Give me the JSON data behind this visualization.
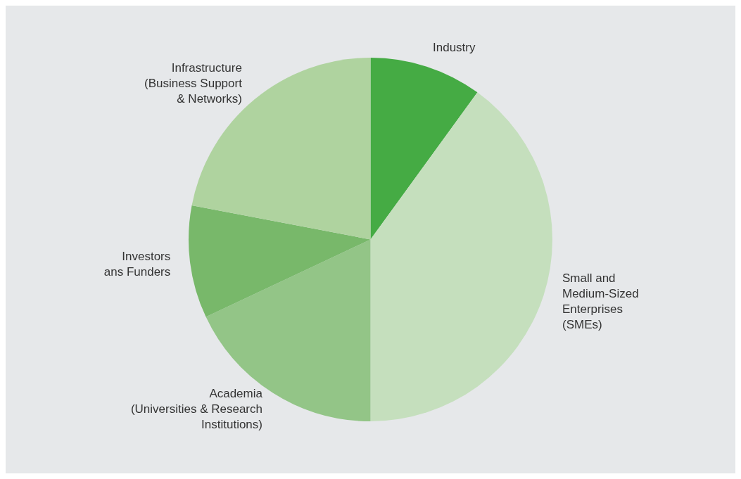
{
  "chart_data": {
    "type": "pie",
    "categories": [
      "Industry",
      "Small and\nMedium-Sized\nEnterprises\n(SMEs)",
      "Academia\n(Universities & Research\nInstitutions)",
      "Investors\nans Funders",
      "Infrastructure\n(Business Support\n& Networks)"
    ],
    "values": [
      10,
      40,
      18,
      10,
      22
    ],
    "colors": [
      "#45ab44",
      "#c5dfbd",
      "#93c587",
      "#78b86a",
      "#afd39f"
    ],
    "legend": false
  }
}
